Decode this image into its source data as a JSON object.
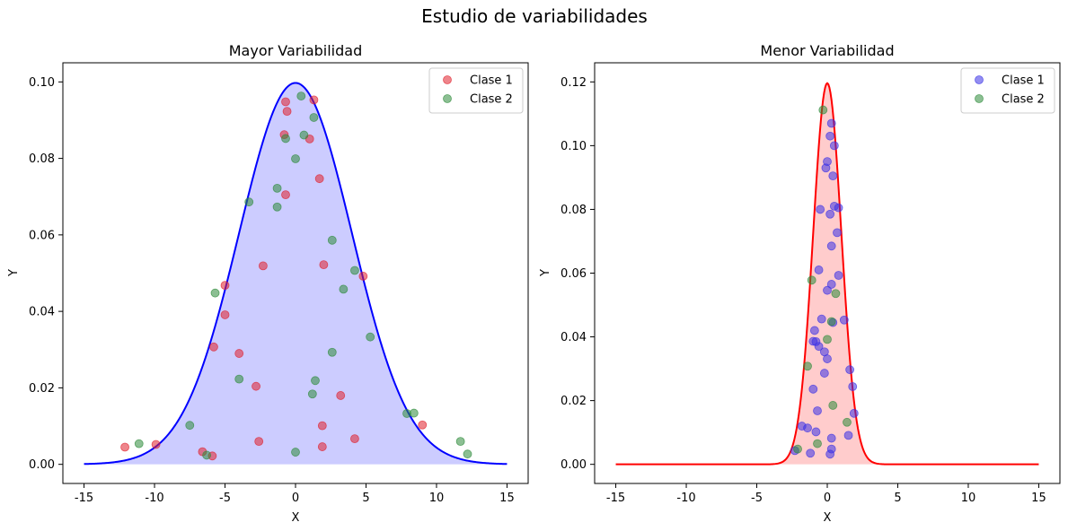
{
  "figure": {
    "title": "Estudio de variabilidades"
  },
  "chart_data": [
    {
      "type": "scatter",
      "title": "Mayor Variabilidad",
      "xlabel": "X",
      "ylabel": "Y",
      "xlim": [
        -16.5,
        16.5
      ],
      "ylim": [
        -0.005,
        0.105
      ],
      "xticks": [
        -15,
        -10,
        -5,
        0,
        5,
        10,
        15
      ],
      "yticks": [
        0.0,
        0.02,
        0.04,
        0.06,
        0.08,
        0.1
      ],
      "ytick_labels": [
        "0.00",
        "0.02",
        "0.04",
        "0.06",
        "0.08",
        "0.10"
      ],
      "grid": false,
      "legend_position": "top-right",
      "curve": {
        "type": "normal-pdf",
        "mean": 0,
        "sd": 4,
        "x_range": [
          -15,
          15
        ],
        "color": "#0000ff",
        "fill": "#ccccff"
      },
      "series": [
        {
          "name": "Clase 1",
          "color": "#e0202c",
          "points": [
            [
              -12.1,
              0.0045
            ],
            [
              -9.9,
              0.0052
            ],
            [
              -6.6,
              0.0033
            ],
            [
              -5.9,
              0.0022
            ],
            [
              -5.8,
              0.0307
            ],
            [
              -5.0,
              0.0468
            ],
            [
              -5.0,
              0.0391
            ],
            [
              -4.0,
              0.029
            ],
            [
              -2.8,
              0.0204
            ],
            [
              -2.6,
              0.006
            ],
            [
              -2.3,
              0.0519
            ],
            [
              -0.8,
              0.0862
            ],
            [
              -0.7,
              0.0948
            ],
            [
              -0.6,
              0.0923
            ],
            [
              -0.7,
              0.0705
            ],
            [
              1.0,
              0.0851
            ],
            [
              1.3,
              0.0953
            ],
            [
              1.7,
              0.0747
            ],
            [
              2.0,
              0.0522
            ],
            [
              1.9,
              0.0101
            ],
            [
              1.9,
              0.0046
            ],
            [
              3.2,
              0.018
            ],
            [
              4.2,
              0.0067
            ],
            [
              4.8,
              0.0492
            ],
            [
              9.0,
              0.0103
            ]
          ]
        },
        {
          "name": "Clase 2",
          "color": "#2e8b3a",
          "points": [
            [
              -11.1,
              0.0054
            ],
            [
              -7.5,
              0.0102
            ],
            [
              -6.3,
              0.0024
            ],
            [
              -5.7,
              0.0448
            ],
            [
              -4.0,
              0.0223
            ],
            [
              -3.3,
              0.0686
            ],
            [
              -1.3,
              0.0722
            ],
            [
              -1.3,
              0.0673
            ],
            [
              -0.7,
              0.0852
            ],
            [
              0.0,
              0.0799
            ],
            [
              0.4,
              0.0963
            ],
            [
              0.6,
              0.0861
            ],
            [
              1.3,
              0.0907
            ],
            [
              0.0,
              0.0032
            ],
            [
              1.2,
              0.0184
            ],
            [
              1.4,
              0.0219
            ],
            [
              2.6,
              0.0586
            ],
            [
              2.6,
              0.0293
            ],
            [
              3.4,
              0.0458
            ],
            [
              4.2,
              0.0507
            ],
            [
              5.3,
              0.0333
            ],
            [
              7.9,
              0.0133
            ],
            [
              8.4,
              0.0134
            ],
            [
              11.7,
              0.006
            ],
            [
              12.2,
              0.0027
            ]
          ]
        }
      ]
    },
    {
      "type": "scatter",
      "title": "Menor Variabilidad",
      "xlabel": "X",
      "ylabel": "Y",
      "xlim": [
        -16.5,
        16.5
      ],
      "ylim": [
        -0.006,
        0.126
      ],
      "xticks": [
        -15,
        -10,
        -5,
        0,
        5,
        10,
        15
      ],
      "yticks": [
        0.0,
        0.02,
        0.04,
        0.06,
        0.08,
        0.1,
        0.12
      ],
      "ytick_labels": [
        "0.00",
        "0.02",
        "0.04",
        "0.06",
        "0.08",
        "0.10",
        "0.12"
      ],
      "grid": false,
      "legend_position": "top-right",
      "curve": {
        "type": "normal-pdf",
        "mean": 0,
        "sd": 1.0,
        "peak": 0.1196,
        "x_range": [
          -15,
          15
        ],
        "color": "#ff0000",
        "fill": "#ffcccc"
      },
      "series": [
        {
          "name": "Clase 1",
          "color": "#3a32e6",
          "points": [
            [
              0.3,
              0.107
            ],
            [
              0.2,
              0.103
            ],
            [
              0.5,
              0.1
            ],
            [
              0.0,
              0.095
            ],
            [
              -0.1,
              0.093
            ],
            [
              0.4,
              0.0905
            ],
            [
              0.5,
              0.081
            ],
            [
              0.8,
              0.0805
            ],
            [
              -0.5,
              0.08
            ],
            [
              0.2,
              0.0785
            ],
            [
              0.7,
              0.0727
            ],
            [
              0.3,
              0.0685
            ],
            [
              -0.6,
              0.061
            ],
            [
              0.8,
              0.0593
            ],
            [
              0.3,
              0.0565
            ],
            [
              0.0,
              0.0546
            ],
            [
              -0.4,
              0.0456
            ],
            [
              1.2,
              0.0453
            ],
            [
              0.4,
              0.0445
            ],
            [
              -0.9,
              0.042
            ],
            [
              -1.0,
              0.0386
            ],
            [
              -0.8,
              0.0385
            ],
            [
              -0.6,
              0.037
            ],
            [
              -0.2,
              0.0353
            ],
            [
              0.0,
              0.0331
            ],
            [
              -0.2,
              0.0286
            ],
            [
              1.6,
              0.0297
            ],
            [
              -1.0,
              0.0236
            ],
            [
              1.8,
              0.0244
            ],
            [
              -0.7,
              0.0168
            ],
            [
              1.9,
              0.016
            ],
            [
              -1.8,
              0.012
            ],
            [
              -1.4,
              0.0114
            ],
            [
              -0.8,
              0.0102
            ],
            [
              0.3,
              0.0082
            ],
            [
              1.5,
              0.0091
            ],
            [
              0.3,
              0.0048
            ],
            [
              -1.2,
              0.0035
            ],
            [
              0.2,
              0.0032
            ],
            [
              -2.3,
              0.0043
            ]
          ]
        },
        {
          "name": "Clase 2",
          "color": "#2e8b3a",
          "points": [
            [
              -0.3,
              0.1112
            ],
            [
              -1.1,
              0.0578
            ],
            [
              0.6,
              0.0536
            ],
            [
              0.3,
              0.0448
            ],
            [
              0.0,
              0.0392
            ],
            [
              -1.4,
              0.0308
            ],
            [
              0.4,
              0.0185
            ],
            [
              1.4,
              0.0132
            ],
            [
              -0.7,
              0.0065
            ],
            [
              -2.1,
              0.0048
            ]
          ]
        }
      ]
    }
  ]
}
